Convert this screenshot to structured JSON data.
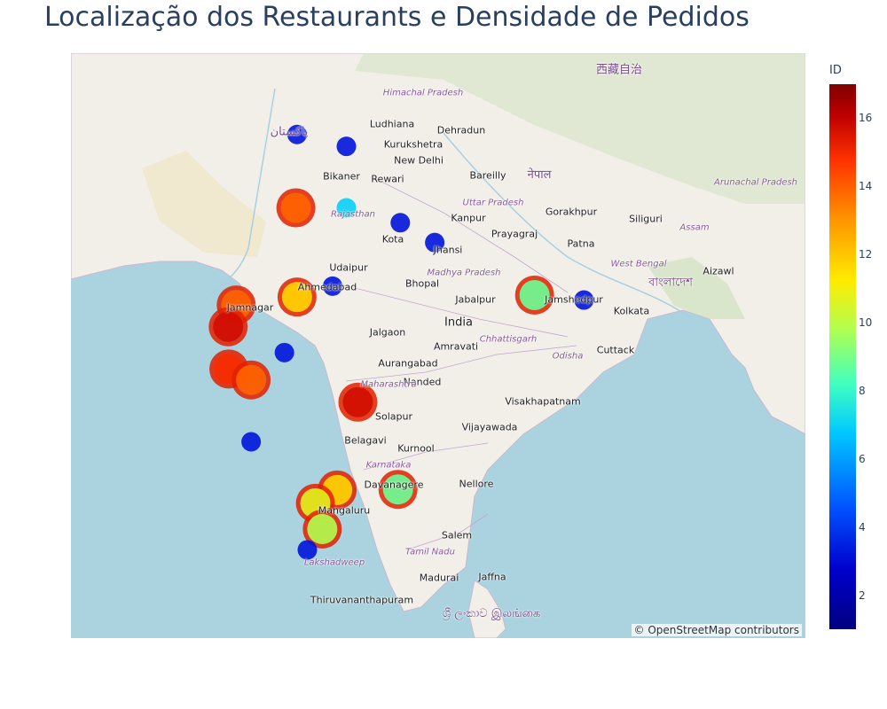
{
  "title": "Localização dos Restaurants e Densidade de Pedidos",
  "attribution": "© OpenStreetMap contributors",
  "colorbar": {
    "title": "ID",
    "min": 1,
    "max": 17,
    "ticks": [
      "2",
      "4",
      "6",
      "8",
      "10",
      "12",
      "14",
      "16"
    ],
    "colors": [
      "#000080",
      "#0000cd",
      "#0050ff",
      "#00c8ff",
      "#40ffc0",
      "#b0ff50",
      "#ffeb00",
      "#ff9600",
      "#ff3200",
      "#c00000",
      "#800000"
    ]
  },
  "map_labels": {
    "ludhiana": "Ludhiana",
    "dehradun": "Dehradun",
    "kurukshetra": "Kurukshetra",
    "new_delhi": "New Delhi",
    "bareilly": "Bareilly",
    "rewari": "Rewari",
    "bikaner": "Bikaner",
    "kanpur": "Kanpur",
    "gorakhpur": "Gorakhpur",
    "siliguri": "Siliguri",
    "prayagraj": "Prayagraj",
    "kota": "Kota",
    "jhansi": "Jhansi",
    "patna": "Patna",
    "udaipur": "Udaipur",
    "ahmedabad": "Ahmedabad",
    "jamnagar": "Jamnagar",
    "bhopal": "Bhopal",
    "jabalpur": "Jabalpur",
    "jamshedpur": "Jamshedpur",
    "kolkata": "Kolkata",
    "india": "India",
    "jalgaon": "Jalgaon",
    "amravati": "Amravati",
    "aurangabad": "Aurangabad",
    "nanded": "Nanded",
    "cuttack": "Cuttack",
    "solapur": "Solapur",
    "visakhapatnam": "Visakhapatnam",
    "vijayawada": "Vijayawada",
    "belagavi": "Belagavi",
    "kurnool": "Kurnool",
    "nellore": "Nellore",
    "davanagere": "Davanagere",
    "mangaluru": "Mangaluru",
    "salem": "Salem",
    "madurai": "Madurai",
    "jaffna": "Jaffna",
    "thiruvananthapuram": "Thiruvananthapuram",
    "aizawl": "Aizawl",
    "uttar_pradesh": "Uttar Pradesh",
    "rajasthan": "Rajasthan",
    "madhya_pradesh": "Madhya Pradesh",
    "chhattisgarh": "Chhattisgarh",
    "odisha": "Odisha",
    "west_bengal": "West Bengal",
    "assam": "Assam",
    "karnataka": "Karnataka",
    "maharashtra": "Maharashtra",
    "tamil_nadu": "Tamil Nadu",
    "lakshadweep": "Lakshadweep",
    "himachal_pradesh": "Himachal Pradesh",
    "arunachal_pradesh": "Arunachal Pradesh",
    "pakistan": "پاکستان",
    "nepal": "नेपाल",
    "sri_lanka": "ශ්‍රී ලංකාව இலங்கை",
    "bangladesh": "বাংলাদেশ",
    "tibet": "西藏自治"
  },
  "markers": [
    {
      "lat": 30.9,
      "lon": 75.85,
      "id": 3,
      "size": "small"
    },
    {
      "lat": 30.3,
      "lon": 78.0,
      "id": 3,
      "size": "small"
    },
    {
      "lat": 27.2,
      "lon": 75.8,
      "id": 13,
      "size": "large"
    },
    {
      "lat": 27.2,
      "lon": 78.0,
      "id": 6,
      "size": "small"
    },
    {
      "lat": 26.45,
      "lon": 80.35,
      "id": 3,
      "size": "small"
    },
    {
      "lat": 25.45,
      "lon": 81.85,
      "id": 3,
      "size": "small"
    },
    {
      "lat": 23.25,
      "lon": 77.4,
      "id": 3,
      "size": "small"
    },
    {
      "lat": 22.7,
      "lon": 75.85,
      "id": 11,
      "size": "large"
    },
    {
      "lat": 22.8,
      "lon": 86.2,
      "id": 8,
      "size": "large"
    },
    {
      "lat": 22.55,
      "lon": 88.35,
      "id": 3,
      "size": "small"
    },
    {
      "lat": 22.3,
      "lon": 73.2,
      "id": 13,
      "size": "large"
    },
    {
      "lat": 21.2,
      "lon": 72.85,
      "id": 15,
      "size": "large"
    },
    {
      "lat": 19.9,
      "lon": 75.3,
      "id": 3,
      "size": "small"
    },
    {
      "lat": 19.07,
      "lon": 72.88,
      "id": 14,
      "size": "large"
    },
    {
      "lat": 18.52,
      "lon": 73.85,
      "id": 13,
      "size": "large"
    },
    {
      "lat": 17.4,
      "lon": 78.5,
      "id": 15,
      "size": "large"
    },
    {
      "lat": 15.4,
      "lon": 73.85,
      "id": 3,
      "size": "small"
    },
    {
      "lat": 13.0,
      "lon": 80.25,
      "id": 8,
      "size": "large"
    },
    {
      "lat": 12.97,
      "lon": 77.6,
      "id": 11,
      "size": "large"
    },
    {
      "lat": 12.3,
      "lon": 76.65,
      "id": 10,
      "size": "large"
    },
    {
      "lat": 11.0,
      "lon": 76.95,
      "id": 9,
      "size": "large"
    },
    {
      "lat": 9.95,
      "lon": 76.3,
      "id": 3,
      "size": "small"
    }
  ]
}
